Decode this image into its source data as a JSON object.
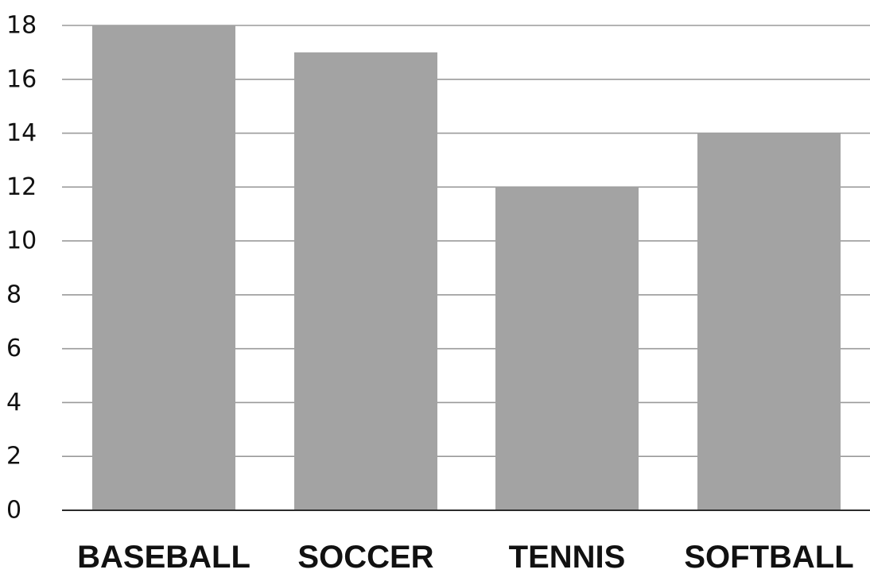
{
  "chart_data": {
    "type": "bar",
    "title": "",
    "xlabel": "",
    "ylabel": "",
    "categories": [
      "BASEBALL",
      "SOCCER",
      "TENNIS",
      "SOFTBALL"
    ],
    "values": [
      18,
      17,
      12,
      14
    ],
    "ylim": [
      0,
      18
    ],
    "yticks": [
      0,
      2,
      4,
      6,
      8,
      10,
      12,
      14,
      16,
      18
    ],
    "grid": true,
    "legend": "none",
    "colors": {
      "bar": "#a3a3a3",
      "grid": "#9a9a9a",
      "axis": "#2b2b2b",
      "text": "#111111"
    }
  }
}
